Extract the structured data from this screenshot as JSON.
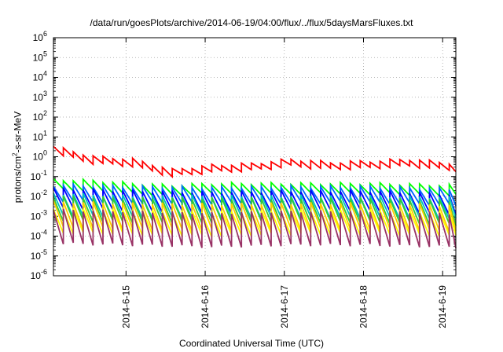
{
  "chart_data": {
    "type": "line",
    "title": "/data/run/goesPlots/archive/2014-06-19/04:00/flux/../flux/5daysMarsFluxes.txt",
    "xlabel": "Coordinated Universal Time (UTC)",
    "ylabel": {
      "prefix": "protons/cm",
      "superscript": "2",
      "suffix": "-s-sr-MeV"
    },
    "y_scale": "log",
    "ylim_exponents": [
      -6,
      6
    ],
    "y_tick_exponents": [
      -6,
      -5,
      -4,
      -3,
      -2,
      -1,
      0,
      1,
      2,
      3,
      4,
      5,
      6
    ],
    "y_tick_base": "10",
    "x_range_days": [
      "2014-06-14T02:00",
      "2014-06-19T04:00"
    ],
    "x_ticks": [
      "2014-6-15",
      "2014-6-16",
      "2014-6-17",
      "2014-6-18",
      "2014-6-19"
    ],
    "grid": true,
    "legend": "none",
    "sawtooth_period_hours": 3,
    "series": [
      {
        "color": "#ff0000",
        "trend": [
          [
            0,
            2.2
          ],
          [
            0.5,
            0.7
          ],
          [
            1.0,
            0.5
          ],
          [
            1.5,
            0.15
          ],
          [
            2.0,
            0.25
          ],
          [
            2.5,
            0.3
          ],
          [
            3.0,
            0.5
          ],
          [
            3.5,
            0.35
          ],
          [
            4.0,
            0.4
          ],
          [
            4.5,
            0.5
          ],
          [
            5.08,
            0.3
          ]
        ],
        "drop_decades": 0.35
      },
      {
        "color": "#00ff00",
        "trend": [
          [
            0,
            0.04
          ],
          [
            0.5,
            0.035
          ],
          [
            1.0,
            0.025
          ],
          [
            1.5,
            0.02
          ],
          [
            2.0,
            0.025
          ],
          [
            3.0,
            0.025
          ],
          [
            4.0,
            0.025
          ],
          [
            5.08,
            0.02
          ]
        ],
        "drop_decades": 0.5
      },
      {
        "color": "#0066ff",
        "trend": [
          [
            0,
            0.015
          ],
          [
            1.0,
            0.012
          ],
          [
            2.0,
            0.011
          ],
          [
            3.0,
            0.012
          ],
          [
            4.0,
            0.012
          ],
          [
            5.08,
            0.009
          ]
        ],
        "drop_decades": 0.8
      },
      {
        "color": "#0000ff",
        "trend": [
          [
            0,
            0.008
          ],
          [
            1.0,
            0.006
          ],
          [
            2.0,
            0.005
          ],
          [
            3.0,
            0.006
          ],
          [
            4.0,
            0.006
          ],
          [
            5.08,
            0.004
          ]
        ],
        "drop_decades": 1.0
      },
      {
        "color": "#00c0c0",
        "trend": [
          [
            0,
            0.004
          ],
          [
            1.0,
            0.003
          ],
          [
            2.0,
            0.003
          ],
          [
            3.0,
            0.003
          ],
          [
            4.0,
            0.003
          ],
          [
            5.08,
            0.0025
          ]
        ],
        "drop_decades": 1.1
      },
      {
        "color": "#33cc33",
        "trend": [
          [
            0,
            0.0025
          ],
          [
            1.0,
            0.002
          ],
          [
            2.0,
            0.002
          ],
          [
            3.0,
            0.002
          ],
          [
            4.0,
            0.002
          ],
          [
            5.08,
            0.0015
          ]
        ],
        "drop_decades": 1.2
      },
      {
        "color": "#ffcc00",
        "trend": [
          [
            0,
            0.0012
          ],
          [
            1.0,
            0.001
          ],
          [
            2.0,
            0.0009
          ],
          [
            3.0,
            0.001
          ],
          [
            4.0,
            0.001
          ],
          [
            5.08,
            0.0008
          ]
        ],
        "drop_decades": 1.3
      },
      {
        "color": "#ffff00",
        "trend": [
          [
            0,
            0.0006
          ],
          [
            1.0,
            0.0005
          ],
          [
            2.0,
            0.0004
          ],
          [
            3.0,
            0.0005
          ],
          [
            4.0,
            0.0005
          ],
          [
            5.08,
            0.0004
          ]
        ],
        "drop_decades": 1.2
      },
      {
        "color": "#993366",
        "trend": [
          [
            0,
            0.0003
          ],
          [
            1.0,
            0.00025
          ],
          [
            2.0,
            0.0002
          ],
          [
            3.0,
            0.00025
          ],
          [
            4.0,
            0.00025
          ],
          [
            5.08,
            0.0002
          ]
        ],
        "drop_decades": 1.7
      }
    ]
  }
}
